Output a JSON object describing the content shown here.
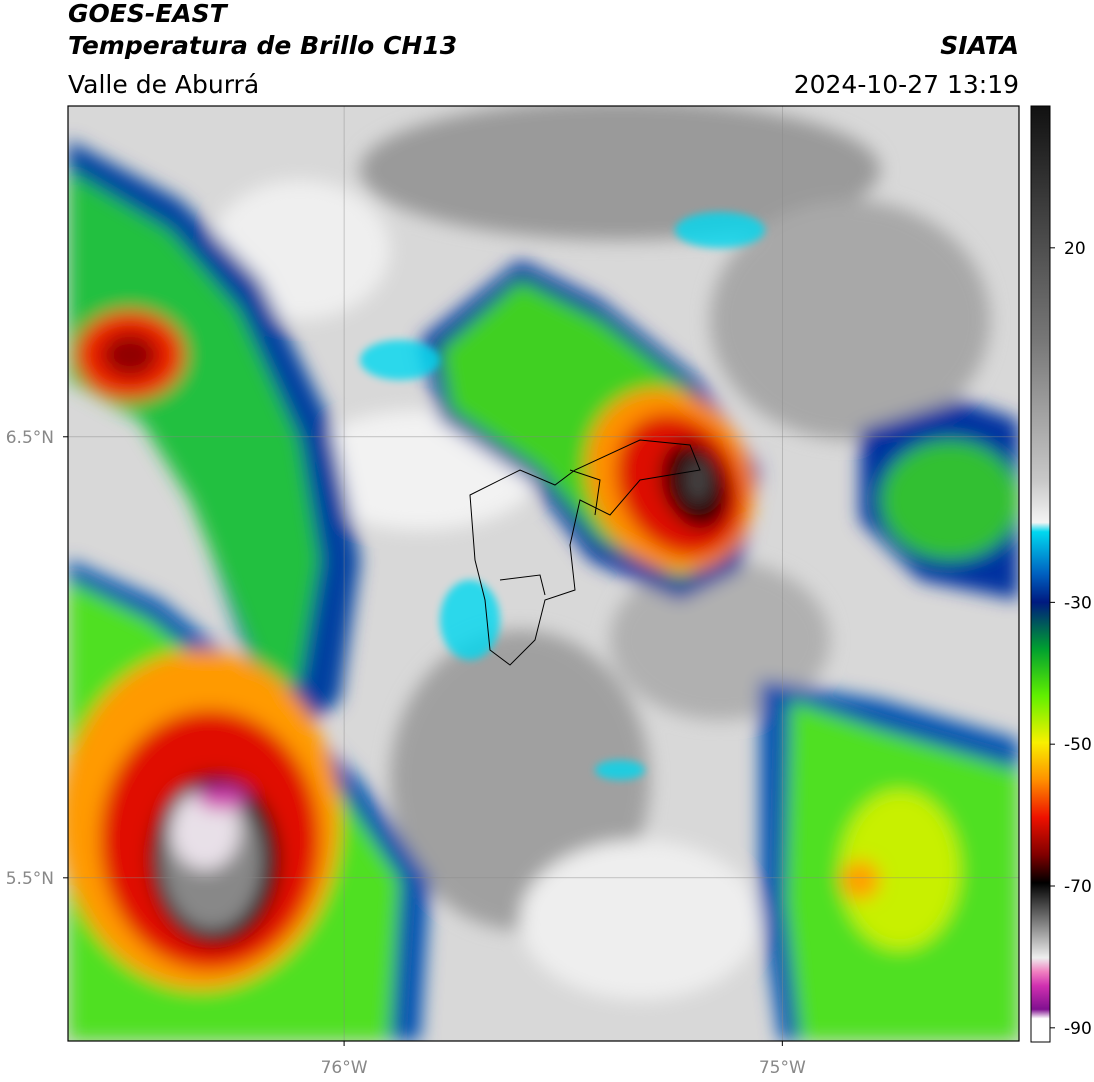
{
  "map": {
    "header": {
      "title": "GOES-EAST",
      "subtitle": "Temperatura de Brillo CH13",
      "region": "Valle de Aburrá",
      "source": "SIATA",
      "datetime": "2024-10-27 13:19"
    },
    "xlim": [
      -76.63,
      -74.46
    ],
    "ylim": [
      5.13,
      7.25
    ],
    "xticks": [
      {
        "value": -76,
        "label": "76°W"
      },
      {
        "value": -75,
        "label": "75°W"
      }
    ],
    "yticks": [
      {
        "value": 6.5,
        "label": "6.5°N"
      },
      {
        "value": 5.5,
        "label": "5.5°N"
      }
    ],
    "grid": true,
    "colorbar": {
      "lim": [
        -92,
        40
      ],
      "ticks": [
        20,
        -30,
        -50,
        -70,
        -90
      ]
    }
  }
}
